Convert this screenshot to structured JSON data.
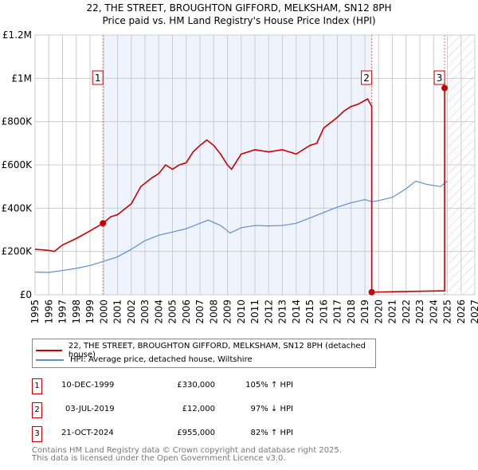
{
  "title": "22, THE STREET, BROUGHTON GIFFORD, MELKSHAM, SN12 8PH",
  "subtitle": "Price paid vs. HM Land Registry's House Price Index (HPI)",
  "chart_data": {
    "type": "line",
    "xlim": [
      1995,
      2027
    ],
    "ylim": [
      0,
      1200000
    ],
    "x_ticks": [
      "1995",
      "1996",
      "1997",
      "1998",
      "1999",
      "2000",
      "2001",
      "2002",
      "2003",
      "2004",
      "2005",
      "2006",
      "2007",
      "2008",
      "2009",
      "2010",
      "2011",
      "2012",
      "2013",
      "2014",
      "2015",
      "2016",
      "2017",
      "2018",
      "2019",
      "2020",
      "2021",
      "2022",
      "2023",
      "2024",
      "2025",
      "2026",
      "2027"
    ],
    "y_ticks": [
      {
        "v": 0,
        "label": "£0"
      },
      {
        "v": 200000,
        "label": "£200K"
      },
      {
        "v": 400000,
        "label": "£400K"
      },
      {
        "v": 600000,
        "label": "£600K"
      },
      {
        "v": 800000,
        "label": "£800K"
      },
      {
        "v": 1000000,
        "label": "£1M"
      },
      {
        "v": 1200000,
        "label": "£1.2M"
      }
    ],
    "series": [
      {
        "name": "22, THE STREET, BROUGHTON GIFFORD, MELKSHAM, SN12 8PH (detached house)",
        "color": "#cc0000",
        "x": [
          1995,
          1996,
          1996.4,
          1997,
          1998,
          1999,
          1999.94,
          2000.5,
          2001,
          2002,
          2002.7,
          2003.5,
          2004,
          2004.5,
          2005,
          2005.5,
          2006,
          2006.5,
          2007,
          2007.5,
          2008,
          2008.5,
          2009,
          2009.3,
          2010,
          2011,
          2012,
          2013,
          2014,
          2015,
          2015.5,
          2016,
          2017,
          2017.5,
          2018,
          2018.5,
          2019.2,
          2019.5,
          2019.5,
          2022,
          2024.8,
          2024.8,
          2025
        ],
        "y": [
          210000,
          205000,
          200000,
          230000,
          260000,
          295000,
          330000,
          360000,
          370000,
          420000,
          500000,
          540000,
          560000,
          600000,
          580000,
          600000,
          610000,
          660000,
          690000,
          715000,
          690000,
          650000,
          600000,
          580000,
          650000,
          670000,
          660000,
          670000,
          650000,
          690000,
          700000,
          770000,
          820000,
          850000,
          870000,
          880000,
          905000,
          870000,
          12000,
          15000,
          18000,
          955000,
          955000
        ]
      },
      {
        "name": "HPI: Average price, detached house, Wiltshire",
        "color": "#5b8fd4",
        "x": [
          1995,
          1996,
          1997,
          1998,
          1999,
          2000,
          2001,
          2002,
          2003,
          2004,
          2005,
          2006,
          2007,
          2007.6,
          2008.5,
          2009.2,
          2010,
          2011,
          2012,
          2013,
          2014,
          2015,
          2016,
          2017,
          2018,
          2019,
          2019.5,
          2020,
          2021,
          2022,
          2022.7,
          2023.5,
          2024.5,
          2025
        ],
        "y": [
          105000,
          103000,
          112000,
          122000,
          135000,
          155000,
          175000,
          210000,
          250000,
          275000,
          290000,
          305000,
          330000,
          345000,
          320000,
          285000,
          310000,
          320000,
          318000,
          320000,
          330000,
          355000,
          380000,
          405000,
          425000,
          440000,
          430000,
          435000,
          450000,
          490000,
          525000,
          510000,
          500000,
          525000
        ]
      }
    ],
    "sales": [
      {
        "n": "1",
        "x": 1999.94,
        "y": 330000,
        "date": "10-DEC-1999",
        "price": "£330,000",
        "hpi": "105% ↑ HPI"
      },
      {
        "n": "2",
        "x": 2019.5,
        "y": 12000,
        "date": "03-JUL-2019",
        "price": "£12,000",
        "hpi": "97% ↓ HPI"
      },
      {
        "n": "3",
        "x": 2024.8,
        "y": 955000,
        "date": "21-OCT-2024",
        "price": "£955,000",
        "hpi": "82% ↑ HPI"
      }
    ],
    "shaded_range": [
      1999.94,
      2019.5
    ],
    "hatched_from": 2025
  },
  "footer": {
    "line1": "Contains HM Land Registry data © Crown copyright and database right 2025.",
    "line2": "This data is licensed under the Open Government Licence v3.0."
  }
}
